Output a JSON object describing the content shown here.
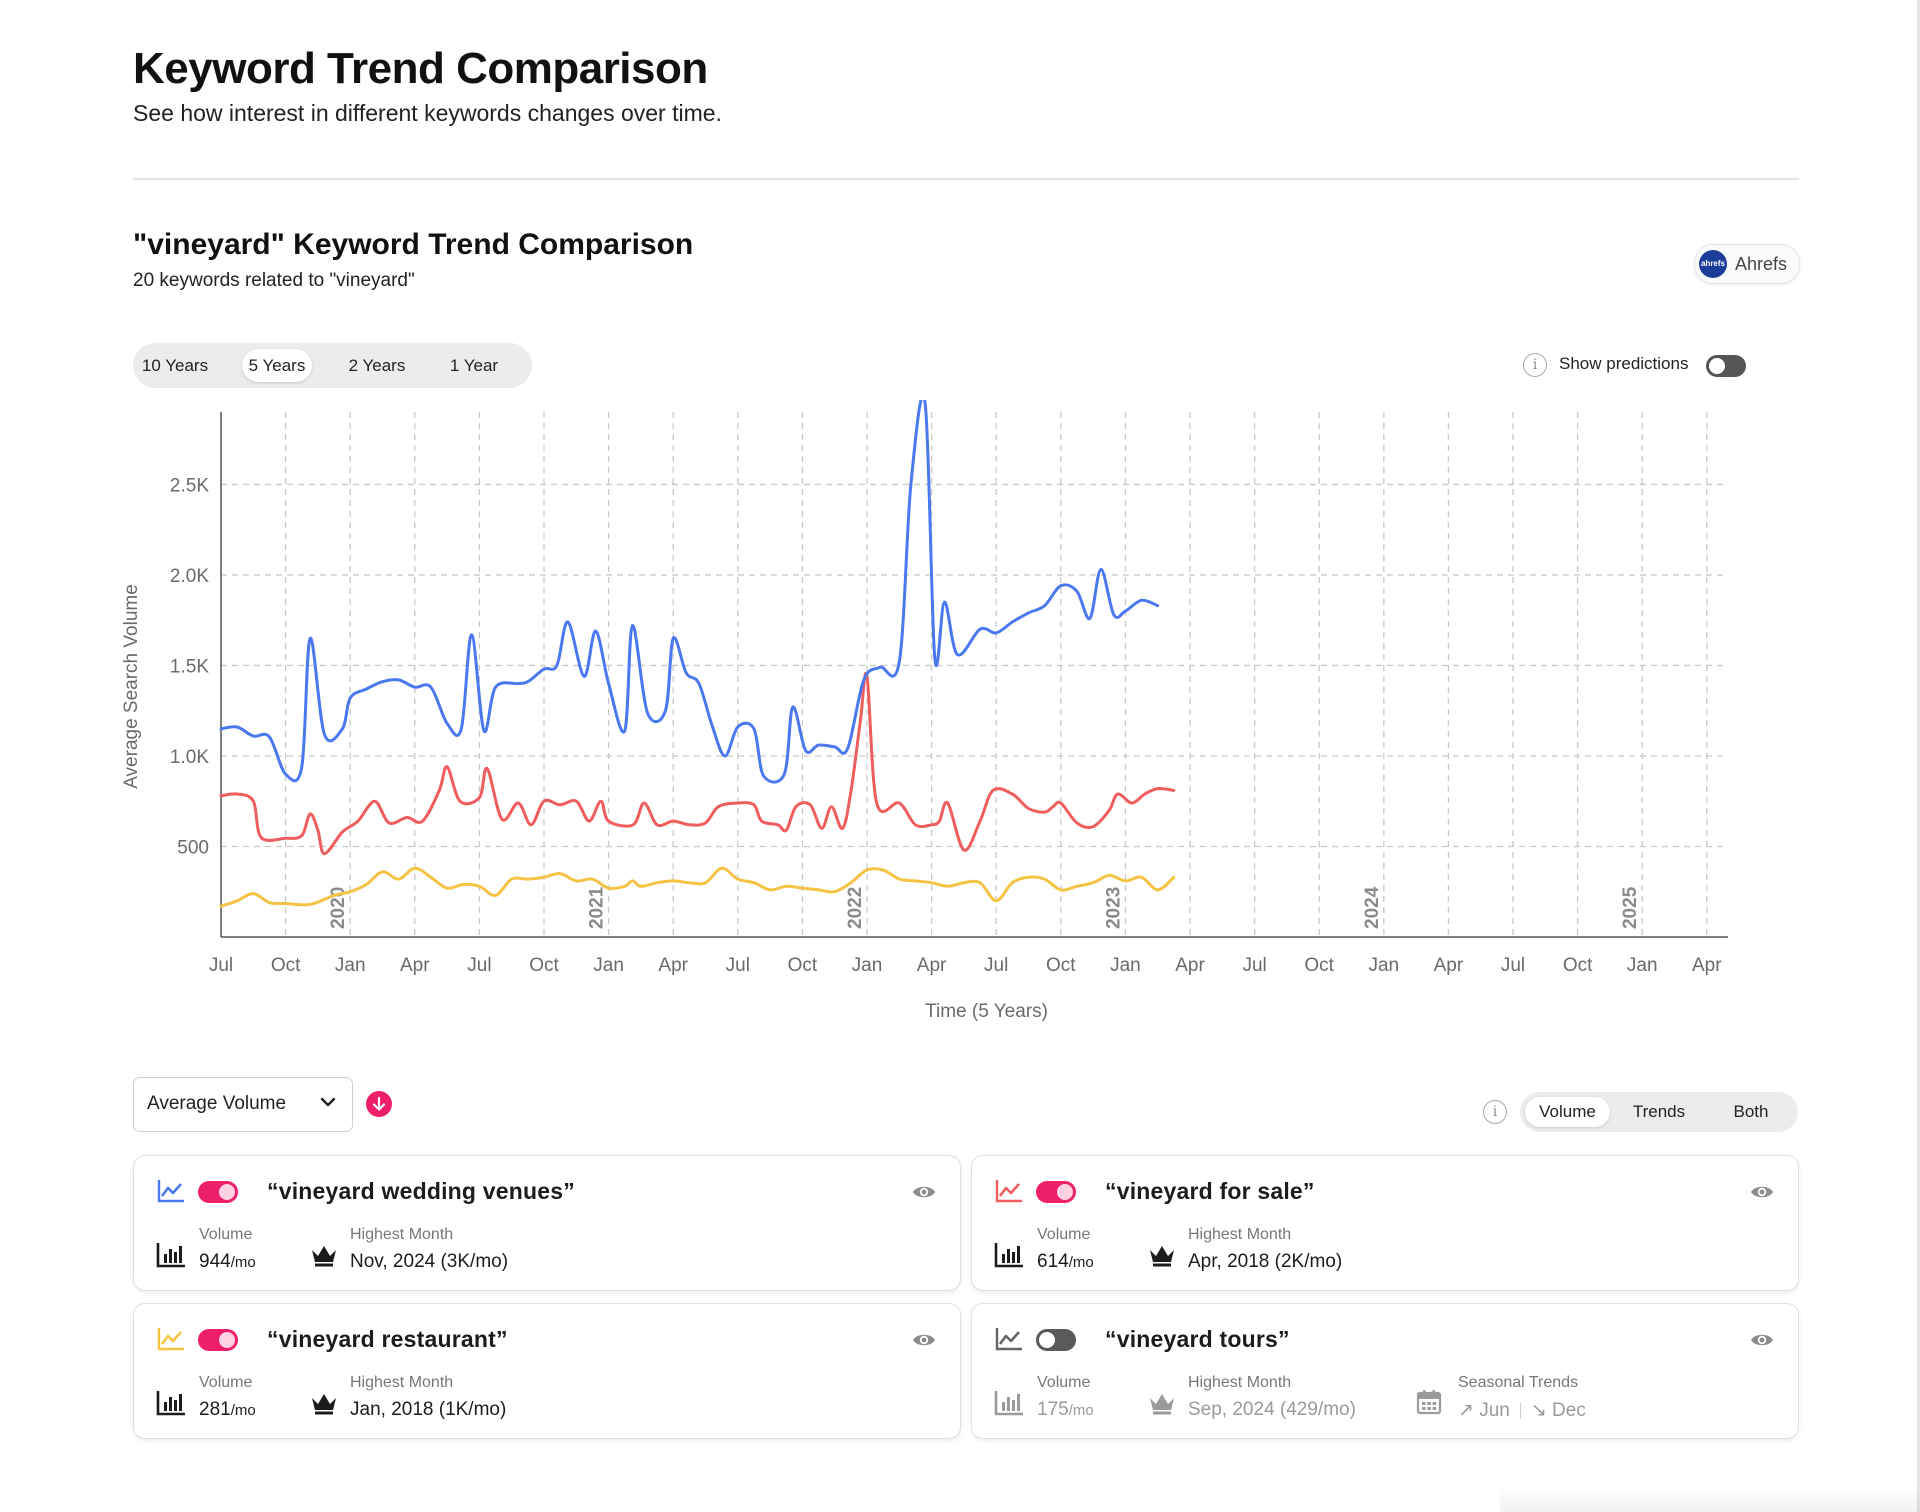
{
  "page": {
    "title": "Keyword Trend Comparison",
    "subtitle": "See how interest in different keywords changes over time."
  },
  "section": {
    "title": "\"vineyard\" Keyword Trend Comparison",
    "subtitle": "20 keywords related to \"vineyard\"",
    "source_badge": "Ahrefs",
    "source_logo_text": "ahrefs"
  },
  "range_tabs": [
    {
      "label": "10 Years",
      "active": false
    },
    {
      "label": "5 Years",
      "active": true
    },
    {
      "label": "2 Years",
      "active": false
    },
    {
      "label": "1 Year",
      "active": false
    }
  ],
  "predictions": {
    "label": "Show predictions",
    "enabled": false,
    "info_glyph": "i"
  },
  "chart_data": {
    "type": "line",
    "xlabel": "Time (5 Years)",
    "ylabel": "Average Search Volume",
    "ylim": [
      0,
      2900
    ],
    "yticks": [
      500,
      1000,
      1500,
      2000,
      2500
    ],
    "ytick_labels": [
      "500",
      "1.0K",
      "1.5K",
      "2.0K",
      "2.5K"
    ],
    "x_tick_labels": [
      "Jul",
      "Oct",
      "Jan",
      "Apr",
      "Jul",
      "Oct",
      "Jan",
      "Apr",
      "Jul",
      "Oct",
      "Jan",
      "Apr",
      "Jul",
      "Oct",
      "Jan",
      "Apr",
      "Jul",
      "Oct",
      "Jan",
      "Apr",
      "Jul",
      "Oct",
      "Jan",
      "Apr"
    ],
    "year_labels": [
      {
        "label": "2020",
        "tick": 2
      },
      {
        "label": "2021",
        "tick": 6
      },
      {
        "label": "2022",
        "tick": 10
      },
      {
        "label": "2023",
        "tick": 14
      },
      {
        "label": "2024",
        "tick": 18
      },
      {
        "label": "2025",
        "tick": 22
      }
    ],
    "grid": true,
    "series": [
      {
        "color": "#4a78ee",
        "points": [
          [
            0,
            1150
          ],
          [
            0.25,
            1160
          ],
          [
            0.5,
            1110
          ],
          [
            0.75,
            1105
          ],
          [
            1,
            900
          ],
          [
            1.25,
            940
          ],
          [
            1.38,
            1650
          ],
          [
            1.6,
            1120
          ],
          [
            1.88,
            1150
          ],
          [
            2.0,
            1320
          ],
          [
            2.25,
            1370
          ],
          [
            2.5,
            1410
          ],
          [
            2.75,
            1420
          ],
          [
            3.0,
            1380
          ],
          [
            3.25,
            1380
          ],
          [
            3.5,
            1180
          ],
          [
            3.72,
            1150
          ],
          [
            3.88,
            1670
          ],
          [
            4.07,
            1140
          ],
          [
            4.25,
            1380
          ],
          [
            4.6,
            1400
          ],
          [
            4.75,
            1410
          ],
          [
            5.0,
            1480
          ],
          [
            5.2,
            1500
          ],
          [
            5.37,
            1740
          ],
          [
            5.62,
            1440
          ],
          [
            5.8,
            1690
          ],
          [
            6.0,
            1400
          ],
          [
            6.25,
            1140
          ],
          [
            6.37,
            1720
          ],
          [
            6.6,
            1240
          ],
          [
            6.88,
            1250
          ],
          [
            7.0,
            1650
          ],
          [
            7.2,
            1460
          ],
          [
            7.4,
            1400
          ],
          [
            7.6,
            1170
          ],
          [
            7.8,
            1000
          ],
          [
            8.0,
            1160
          ],
          [
            8.25,
            1150
          ],
          [
            8.4,
            890
          ],
          [
            8.72,
            900
          ],
          [
            8.85,
            1270
          ],
          [
            9.05,
            1030
          ],
          [
            9.25,
            1060
          ],
          [
            9.5,
            1050
          ],
          [
            9.7,
            1040
          ],
          [
            9.95,
            1420
          ],
          [
            10.2,
            1490
          ],
          [
            10.5,
            1520
          ],
          [
            10.68,
            2500
          ],
          [
            10.9,
            2950
          ],
          [
            11.05,
            1540
          ],
          [
            11.2,
            1850
          ],
          [
            11.4,
            1560
          ],
          [
            11.75,
            1700
          ],
          [
            12.0,
            1680
          ],
          [
            12.25,
            1740
          ],
          [
            12.5,
            1790
          ],
          [
            12.75,
            1830
          ],
          [
            13.0,
            1940
          ],
          [
            13.25,
            1910
          ],
          [
            13.45,
            1760
          ],
          [
            13.62,
            2030
          ],
          [
            13.82,
            1780
          ],
          [
            14.0,
            1800
          ],
          [
            14.25,
            1860
          ],
          [
            14.5,
            1830
          ]
        ]
      },
      {
        "color": "#ef5d5d",
        "points": [
          [
            0,
            780
          ],
          [
            0.25,
            790
          ],
          [
            0.5,
            750
          ],
          [
            0.62,
            550
          ],
          [
            1,
            545
          ],
          [
            1.25,
            560
          ],
          [
            1.38,
            680
          ],
          [
            1.5,
            590
          ],
          [
            1.6,
            460
          ],
          [
            1.88,
            580
          ],
          [
            2.12,
            640
          ],
          [
            2.38,
            750
          ],
          [
            2.6,
            630
          ],
          [
            2.88,
            660
          ],
          [
            3.12,
            640
          ],
          [
            3.38,
            810
          ],
          [
            3.5,
            940
          ],
          [
            3.7,
            750
          ],
          [
            4.0,
            770
          ],
          [
            4.12,
            930
          ],
          [
            4.35,
            650
          ],
          [
            4.6,
            740
          ],
          [
            4.8,
            620
          ],
          [
            5.0,
            750
          ],
          [
            5.25,
            730
          ],
          [
            5.5,
            750
          ],
          [
            5.7,
            640
          ],
          [
            5.88,
            750
          ],
          [
            6.0,
            640
          ],
          [
            6.38,
            620
          ],
          [
            6.55,
            740
          ],
          [
            6.75,
            620
          ],
          [
            7.0,
            640
          ],
          [
            7.25,
            620
          ],
          [
            7.5,
            630
          ],
          [
            7.7,
            720
          ],
          [
            8.0,
            740
          ],
          [
            8.25,
            730
          ],
          [
            8.37,
            640
          ],
          [
            8.62,
            620
          ],
          [
            8.75,
            590
          ],
          [
            8.9,
            720
          ],
          [
            9.12,
            730
          ],
          [
            9.3,
            600
          ],
          [
            9.45,
            720
          ],
          [
            9.62,
            600
          ],
          [
            9.75,
            800
          ],
          [
            9.9,
            1200
          ],
          [
            10.0,
            1440
          ],
          [
            10.15,
            740
          ],
          [
            10.5,
            740
          ],
          [
            10.75,
            620
          ],
          [
            11.0,
            620
          ],
          [
            11.12,
            640
          ],
          [
            11.25,
            740
          ],
          [
            11.5,
            480
          ],
          [
            11.75,
            640
          ],
          [
            11.95,
            810
          ],
          [
            12.25,
            790
          ],
          [
            12.5,
            710
          ],
          [
            12.75,
            690
          ],
          [
            12.88,
            720
          ],
          [
            13.0,
            740
          ],
          [
            13.25,
            630
          ],
          [
            13.5,
            610
          ],
          [
            13.75,
            700
          ],
          [
            13.88,
            790
          ],
          [
            14.1,
            740
          ],
          [
            14.3,
            790
          ],
          [
            14.5,
            820
          ],
          [
            14.75,
            810
          ]
        ]
      },
      {
        "color": "#f6c244",
        "points": [
          [
            0,
            170
          ],
          [
            0.25,
            200
          ],
          [
            0.5,
            240
          ],
          [
            0.75,
            190
          ],
          [
            1.0,
            185
          ],
          [
            1.38,
            180
          ],
          [
            1.75,
            230
          ],
          [
            2.0,
            250
          ],
          [
            2.25,
            290
          ],
          [
            2.5,
            360
          ],
          [
            2.75,
            320
          ],
          [
            3.0,
            380
          ],
          [
            3.25,
            330
          ],
          [
            3.5,
            270
          ],
          [
            3.75,
            290
          ],
          [
            4.0,
            280
          ],
          [
            4.25,
            230
          ],
          [
            4.5,
            320
          ],
          [
            4.75,
            320
          ],
          [
            5.0,
            330
          ],
          [
            5.25,
            350
          ],
          [
            5.5,
            310
          ],
          [
            5.75,
            320
          ],
          [
            6.0,
            270
          ],
          [
            6.25,
            280
          ],
          [
            6.37,
            310
          ],
          [
            6.5,
            280
          ],
          [
            6.75,
            300
          ],
          [
            7.0,
            310
          ],
          [
            7.25,
            300
          ],
          [
            7.5,
            300
          ],
          [
            7.75,
            380
          ],
          [
            8.0,
            320
          ],
          [
            8.25,
            300
          ],
          [
            8.5,
            260
          ],
          [
            8.75,
            280
          ],
          [
            9.0,
            270
          ],
          [
            9.25,
            260
          ],
          [
            9.5,
            250
          ],
          [
            9.75,
            300
          ],
          [
            10.0,
            370
          ],
          [
            10.25,
            370
          ],
          [
            10.5,
            320
          ],
          [
            10.75,
            310
          ],
          [
            11.0,
            300
          ],
          [
            11.25,
            280
          ],
          [
            11.5,
            300
          ],
          [
            11.75,
            300
          ],
          [
            12.0,
            200
          ],
          [
            12.25,
            300
          ],
          [
            12.5,
            330
          ],
          [
            12.75,
            320
          ],
          [
            13.0,
            260
          ],
          [
            13.25,
            280
          ],
          [
            13.5,
            300
          ],
          [
            13.75,
            340
          ],
          [
            14.0,
            310
          ],
          [
            14.25,
            330
          ],
          [
            14.5,
            260
          ],
          [
            14.75,
            330
          ]
        ]
      }
    ]
  },
  "sort": {
    "label": "Average Volume"
  },
  "view_tabs": [
    {
      "label": "Volume",
      "active": true
    },
    {
      "label": "Trends",
      "active": false
    },
    {
      "label": "Both",
      "active": false
    }
  ],
  "cards": [
    {
      "keyword": "“vineyard wedding venues”",
      "color": "#4a78ee",
      "enabled": true,
      "icon": "trend-line-icon",
      "volume_label": "Volume",
      "volume": "944",
      "volume_unit": "/mo",
      "highest_label": "Highest Month",
      "highest": "Nov, 2024 (3K/mo)"
    },
    {
      "keyword": "“vineyard for sale”",
      "color": "#ef5d5d",
      "enabled": true,
      "icon": "trend-line-icon",
      "volume_label": "Volume",
      "volume": "614",
      "volume_unit": "/mo",
      "highest_label": "Highest Month",
      "highest": "Apr, 2018 (2K/mo)"
    },
    {
      "keyword": "“vineyard restaurant”",
      "color": "#f6c244",
      "enabled": true,
      "icon": "trend-line-icon",
      "volume_label": "Volume",
      "volume": "281",
      "volume_unit": "/mo",
      "highest_label": "Highest Month",
      "highest": "Jan, 2018 (1K/mo)"
    },
    {
      "keyword": "“vineyard tours”",
      "color": "#666666",
      "enabled": false,
      "icon": "trend-line-icon",
      "volume_label": "Volume",
      "volume": "175",
      "volume_unit": "/mo",
      "highest_label": "Highest Month",
      "highest": "Sep, 2024 (429/mo)",
      "seasonal_label": "Seasonal Trends",
      "seasonal_up": "Jun",
      "seasonal_down": "Dec"
    }
  ]
}
